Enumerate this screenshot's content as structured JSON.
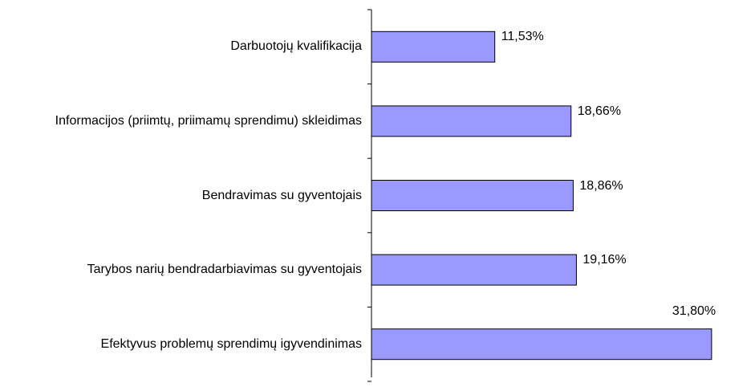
{
  "chart_data": {
    "type": "bar",
    "orientation": "horizontal",
    "categories": [
      "Darbuotojų kvalifikacija",
      "Informacijos (priimtų, priimamų sprendimu) skleidimas",
      "Bendravimas su gyventojais",
      "Tarybos narių bendradarbiavimas su gyventojais",
      "Efektyvus problemų sprendimų igyvendinimas"
    ],
    "values": [
      11.53,
      18.66,
      18.86,
      19.16,
      31.8
    ],
    "value_labels": [
      "11,53%",
      "18,66%",
      "18,86%",
      "19,16%",
      "31,80%"
    ],
    "color": "#9999ff"
  }
}
